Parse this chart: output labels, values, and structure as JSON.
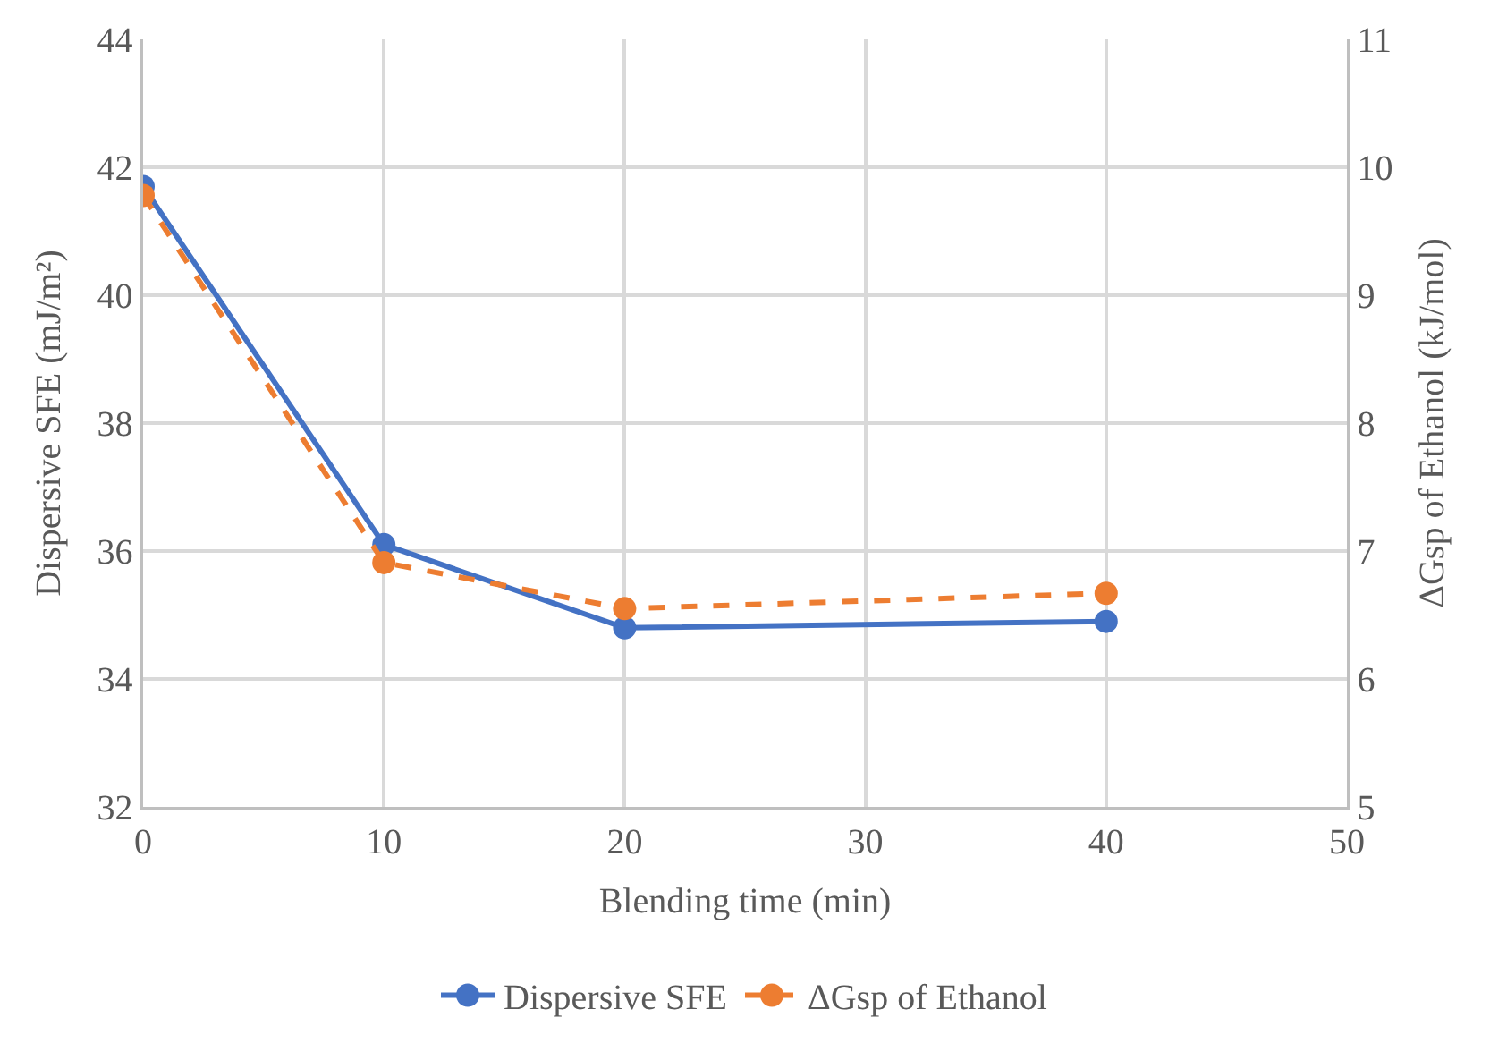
{
  "chart_data": {
    "type": "line",
    "xlabel": "Blending time (min)",
    "ylabel": "Dispersive SFE (mJ/m²)",
    "y2label": "ΔGsp of Ethanol (kJ/mol)",
    "x": [
      0,
      10,
      20,
      40
    ],
    "series": [
      {
        "name": "Dispersive SFE",
        "color": "#4472c4",
        "values": [
          41.7,
          36.1,
          34.8,
          34.9
        ],
        "line_style": "solid"
      },
      {
        "name": "ΔGsp of Ethanol",
        "color": "#ed7d31",
        "values": [
          9.78,
          6.91,
          6.55,
          6.67
        ],
        "axis": "y2",
        "line_style": "dashed"
      }
    ],
    "xlim": [
      0,
      50
    ],
    "xticks": [
      0,
      10,
      20,
      30,
      40,
      50
    ],
    "ylim": [
      32,
      44
    ],
    "yticks": [
      32,
      34,
      36,
      38,
      40,
      42,
      44
    ],
    "y2lim": [
      5,
      11
    ],
    "y2ticks": [
      5,
      6,
      7,
      8,
      9,
      10,
      11
    ],
    "grid": true,
    "legend": "bottom",
    "marker": "circle"
  }
}
